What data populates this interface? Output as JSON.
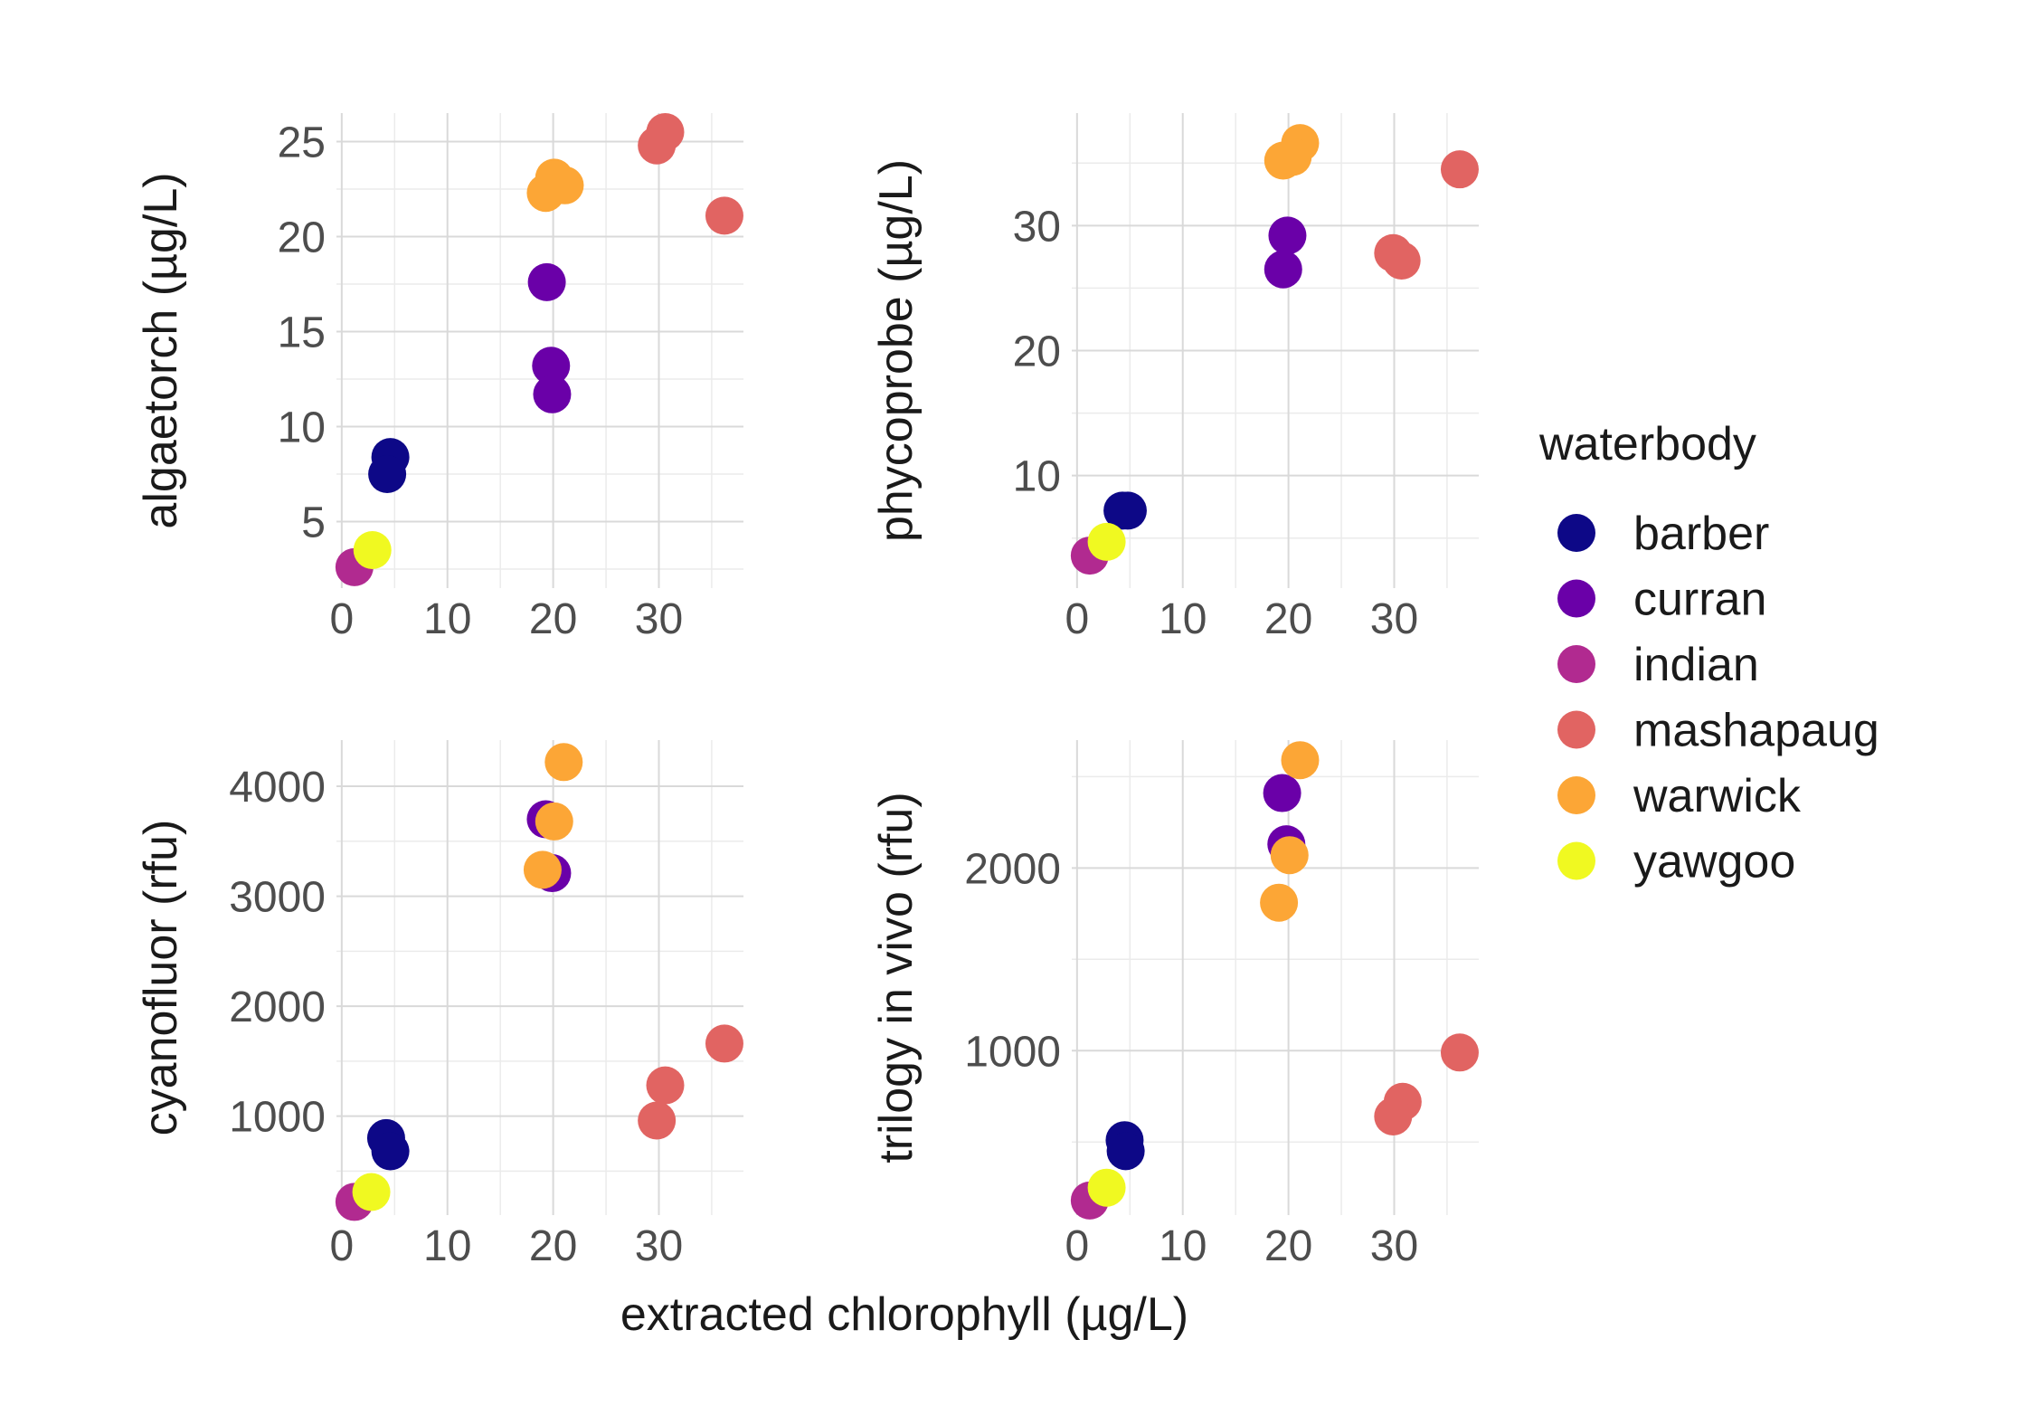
{
  "figure": {
    "xlabel": "extracted chlorophyll (µg/L)"
  },
  "legend": {
    "title": "waterbody",
    "position": "right",
    "entries": [
      {
        "name": "barber",
        "color": "#0d0887"
      },
      {
        "name": "curran",
        "color": "#6a00a8"
      },
      {
        "name": "indian",
        "color": "#b12a90"
      },
      {
        "name": "mashapaug",
        "color": "#e16462"
      },
      {
        "name": "warwick",
        "color": "#fca636"
      },
      {
        "name": "yawgoo",
        "color": "#f0f921"
      }
    ]
  },
  "chart_data": [
    {
      "type": "scatter",
      "ylabel": "algaetorch (µg/L)",
      "xlim": [
        -0.5,
        38
      ],
      "ylim": [
        1.5,
        26.5
      ],
      "x_ticks": [
        0,
        10,
        20,
        30
      ],
      "y_ticks": [
        5,
        10,
        15,
        20,
        25
      ],
      "grid": true,
      "series": [
        {
          "name": "barber",
          "color": "#0d0887",
          "points": [
            [
              4.6,
              8.4
            ],
            [
              4.3,
              7.5
            ]
          ]
        },
        {
          "name": "curran",
          "color": "#6a00a8",
          "points": [
            [
              19.4,
              17.6
            ],
            [
              19.8,
              13.2
            ],
            [
              19.9,
              11.7
            ]
          ]
        },
        {
          "name": "indian",
          "color": "#b12a90",
          "points": [
            [
              1.2,
              2.6
            ]
          ]
        },
        {
          "name": "mashapaug",
          "color": "#e16462",
          "points": [
            [
              30.6,
              25.5
            ],
            [
              29.8,
              24.8
            ],
            [
              36.2,
              21.1
            ]
          ]
        },
        {
          "name": "warwick",
          "color": "#fca636",
          "points": [
            [
              20.1,
              23.1
            ],
            [
              21.1,
              22.7
            ],
            [
              19.3,
              22.3
            ]
          ]
        },
        {
          "name": "yawgoo",
          "color": "#f0f921",
          "points": [
            [
              2.9,
              3.5
            ]
          ]
        }
      ]
    },
    {
      "type": "scatter",
      "ylabel": "phycoprobe (µg/L)",
      "xlim": [
        -0.5,
        38
      ],
      "ylim": [
        1,
        39
      ],
      "x_ticks": [
        0,
        10,
        20,
        30
      ],
      "y_ticks": [
        10,
        20,
        30
      ],
      "grid": true,
      "series": [
        {
          "name": "barber",
          "color": "#0d0887",
          "points": [
            [
              4.3,
              7.2
            ],
            [
              4.8,
              7.2
            ]
          ]
        },
        {
          "name": "curran",
          "color": "#6a00a8",
          "points": [
            [
              19.9,
              29.2
            ],
            [
              19.5,
              26.5
            ]
          ]
        },
        {
          "name": "indian",
          "color": "#b12a90",
          "points": [
            [
              1.2,
              3.6
            ]
          ]
        },
        {
          "name": "mashapaug",
          "color": "#e16462",
          "points": [
            [
              36.2,
              34.5
            ],
            [
              29.9,
              27.8
            ],
            [
              30.7,
              27.2
            ]
          ]
        },
        {
          "name": "warwick",
          "color": "#fca636",
          "points": [
            [
              21.1,
              36.6
            ],
            [
              19.5,
              35.2
            ],
            [
              20.4,
              35.5
            ]
          ]
        },
        {
          "name": "yawgoo",
          "color": "#f0f921",
          "points": [
            [
              2.8,
              4.7
            ]
          ]
        }
      ]
    },
    {
      "type": "scatter",
      "ylabel": "cyanofluor (rfu)",
      "xlim": [
        -0.5,
        38
      ],
      "ylim": [
        100,
        4420
      ],
      "x_ticks": [
        0,
        10,
        20,
        30
      ],
      "y_ticks": [
        1000,
        2000,
        3000,
        4000
      ],
      "grid": true,
      "series": [
        {
          "name": "barber",
          "color": "#0d0887",
          "points": [
            [
              4.2,
              800
            ],
            [
              4.6,
              680
            ]
          ]
        },
        {
          "name": "curran",
          "color": "#6a00a8",
          "points": [
            [
              19.3,
              3700
            ],
            [
              19.9,
              3210
            ]
          ]
        },
        {
          "name": "indian",
          "color": "#b12a90",
          "points": [
            [
              1.2,
              220
            ]
          ]
        },
        {
          "name": "mashapaug",
          "color": "#e16462",
          "points": [
            [
              36.2,
              1660
            ],
            [
              30.6,
              1280
            ],
            [
              29.8,
              960
            ]
          ]
        },
        {
          "name": "warwick",
          "color": "#fca636",
          "points": [
            [
              21.0,
              4220
            ],
            [
              20.1,
              3680
            ],
            [
              19.0,
              3240
            ]
          ]
        },
        {
          "name": "yawgoo",
          "color": "#f0f921",
          "points": [
            [
              2.8,
              310
            ]
          ]
        }
      ]
    },
    {
      "type": "scatter",
      "ylabel": "trilogy in vivo (rfu)",
      "xlim": [
        -0.5,
        38
      ],
      "ylim": [
        100,
        2700
      ],
      "x_ticks": [
        0,
        10,
        20,
        30
      ],
      "y_ticks": [
        1000,
        2000
      ],
      "grid": true,
      "series": [
        {
          "name": "barber",
          "color": "#0d0887",
          "points": [
            [
              4.5,
              510
            ],
            [
              4.6,
              450
            ]
          ]
        },
        {
          "name": "curran",
          "color": "#6a00a8",
          "points": [
            [
              19.4,
              2410
            ],
            [
              19.8,
              2130
            ]
          ]
        },
        {
          "name": "indian",
          "color": "#b12a90",
          "points": [
            [
              1.2,
              180
            ]
          ]
        },
        {
          "name": "mashapaug",
          "color": "#e16462",
          "points": [
            [
              36.2,
              990
            ],
            [
              30.8,
              720
            ],
            [
              29.9,
              640
            ]
          ]
        },
        {
          "name": "warwick",
          "color": "#fca636",
          "points": [
            [
              21.1,
              2590
            ],
            [
              20.1,
              2070
            ],
            [
              19.1,
              1810
            ]
          ]
        },
        {
          "name": "yawgoo",
          "color": "#f0f921",
          "points": [
            [
              2.8,
              250
            ]
          ]
        }
      ]
    }
  ]
}
